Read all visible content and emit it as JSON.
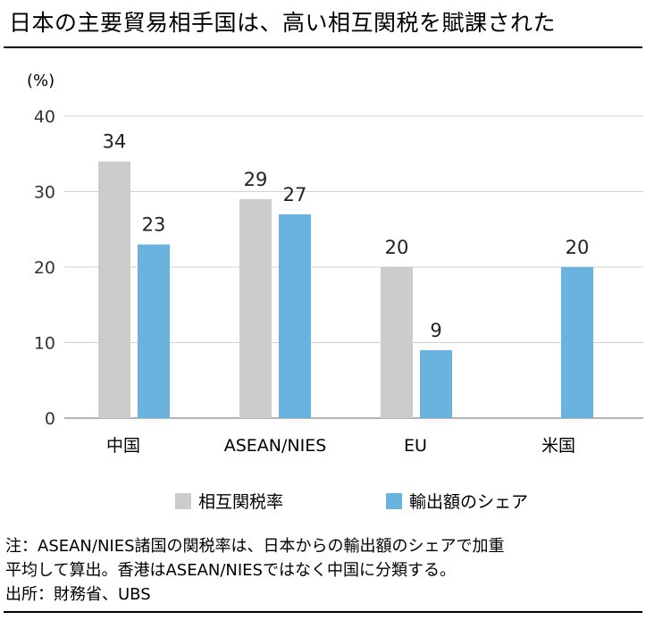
{
  "title": "日本の主要貿易相手国は、高い相互関税を賦課された",
  "chart_data": {
    "type": "bar",
    "ylabel": "(%)",
    "ylim": [
      0,
      40
    ],
    "yticks": [
      0,
      10,
      20,
      30,
      40
    ],
    "categories": [
      "中国",
      "ASEAN/NIES",
      "EU",
      "米国"
    ],
    "series": [
      {
        "name": "相互関税率",
        "color": "#cccccc",
        "values": [
          34,
          29,
          20,
          null
        ]
      },
      {
        "name": "輸出額のシェア",
        "color": "#6bb3df",
        "values": [
          23,
          27,
          9,
          20
        ]
      }
    ],
    "grid": false,
    "legend_position": "bottom"
  },
  "notes": [
    "注：ASEAN/NIES諸国の関税率は、日本からの輸出額のシェアで加重",
    "平均して算出。香港はASEAN/NIESではなく中国に分類する。",
    "出所：財務省、UBS"
  ]
}
